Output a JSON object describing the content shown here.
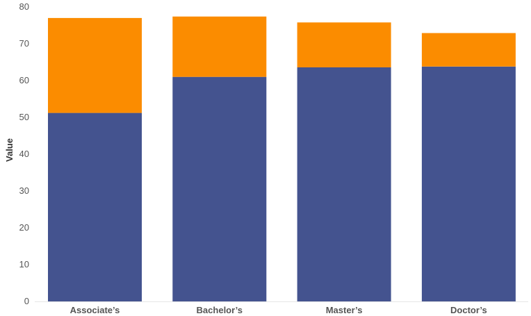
{
  "chart_data": {
    "type": "bar",
    "stacked": true,
    "title": "",
    "xlabel": "",
    "ylabel": "Value",
    "ylim": [
      0,
      80
    ],
    "yticks": [
      "0",
      "10",
      "20",
      "30",
      "40",
      "50",
      "60",
      "70",
      "80"
    ],
    "categories": [
      "Associate’s",
      "Bachelor’s",
      "Master’s",
      "Doctor’s"
    ],
    "series": [
      {
        "color": "#44538f",
        "values": [
          51.2,
          61.0,
          63.6,
          63.8
        ]
      },
      {
        "color": "#fb8c00",
        "values": [
          25.8,
          16.4,
          12.2,
          9.1
        ]
      }
    ],
    "grid": false,
    "legend": "none"
  }
}
